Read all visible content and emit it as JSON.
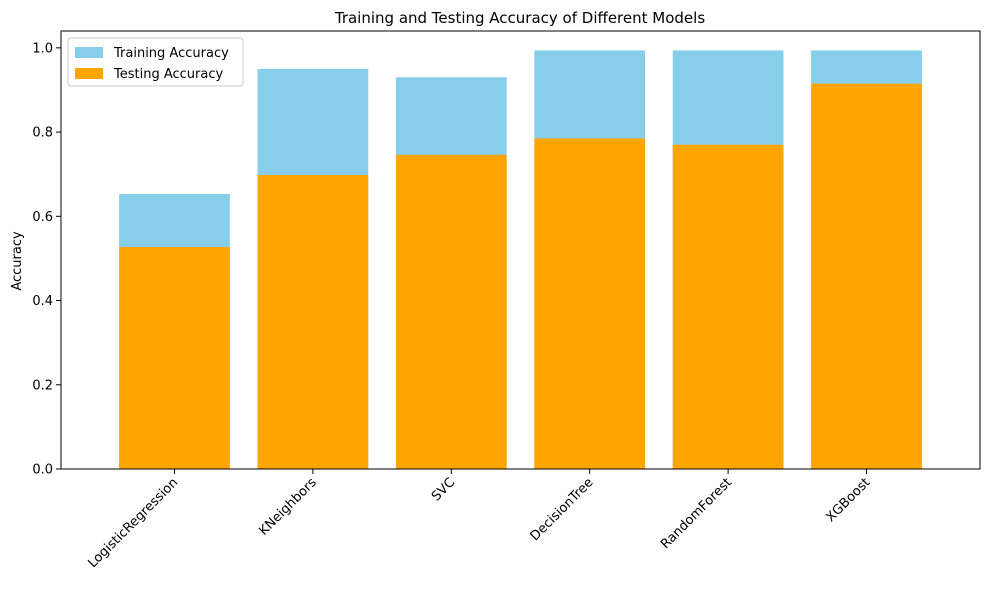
{
  "chart_data": {
    "type": "bar",
    "title": "Training and Testing Accuracy of Different Models",
    "xlabel": "",
    "ylabel": "Accuracy",
    "categories": [
      "LogisticRegression",
      "KNeighbors",
      "SVC",
      "DecisionTree",
      "RandomForest",
      "XGBoost"
    ],
    "series": [
      {
        "name": "Training Accuracy",
        "color": "#87ceeb",
        "values": [
          0.653,
          0.95,
          0.93,
          0.994,
          0.994,
          0.994
        ]
      },
      {
        "name": "Testing Accuracy",
        "color": "#ffa500",
        "values": [
          0.527,
          0.698,
          0.746,
          0.785,
          0.77,
          0.915
        ]
      }
    ],
    "ylim": [
      0,
      1.04
    ],
    "yticks": [
      "0.0",
      "0.2",
      "0.4",
      "0.6",
      "0.8",
      "1.0"
    ],
    "grid": false,
    "legend_position": "top-left",
    "bar_mode": "overlay"
  }
}
